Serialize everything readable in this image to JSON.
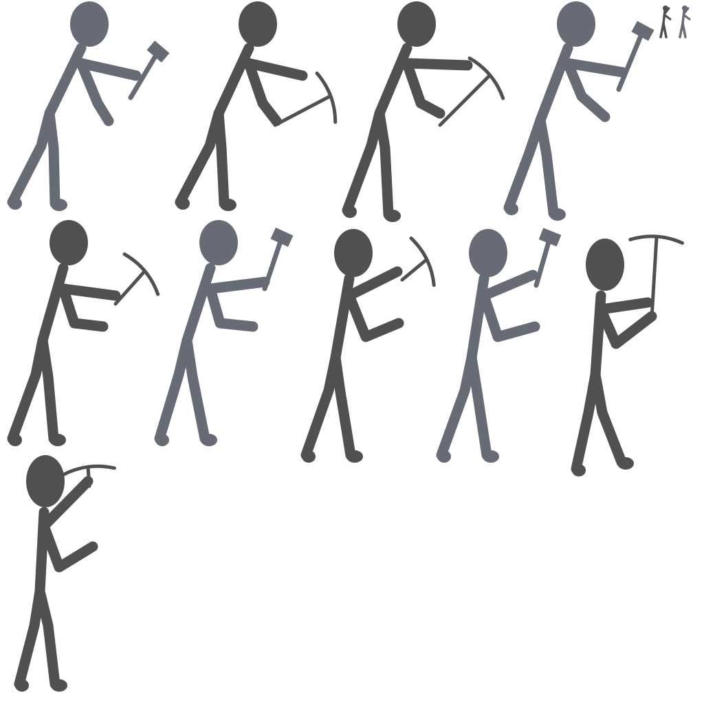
{
  "sprite_sheet": {
    "background": "#ffffff",
    "palette": {
      "gray": "#676b75",
      "dark": "#505050"
    },
    "frames": [
      {
        "tool": "hammer-icon",
        "tone": "gray",
        "pose": "swing-low"
      },
      {
        "tool": "pickaxe-icon",
        "tone": "dark",
        "pose": "swing-low"
      },
      {
        "tool": "pickaxe-icon",
        "tone": "dark",
        "pose": "swing-low"
      },
      {
        "tool": "hammer-icon",
        "tone": "gray",
        "pose": "swing-mid"
      },
      {
        "tool": "pickaxe-icon",
        "tone": "dark",
        "pose": "swing-mid"
      },
      {
        "tool": "hammer-icon",
        "tone": "gray",
        "pose": "swing-mid"
      },
      {
        "tool": "pickaxe-icon",
        "tone": "dark",
        "pose": "raise"
      },
      {
        "tool": "hammer-icon",
        "tone": "gray",
        "pose": "raise"
      },
      {
        "tool": "pickaxe-icon",
        "tone": "dark",
        "pose": "overhead"
      },
      {
        "tool": "pickaxe-icon",
        "tone": "dark",
        "pose": "overhead"
      }
    ],
    "mini_figures": [
      {
        "tone": "dark"
      },
      {
        "tone": "gray"
      }
    ]
  }
}
